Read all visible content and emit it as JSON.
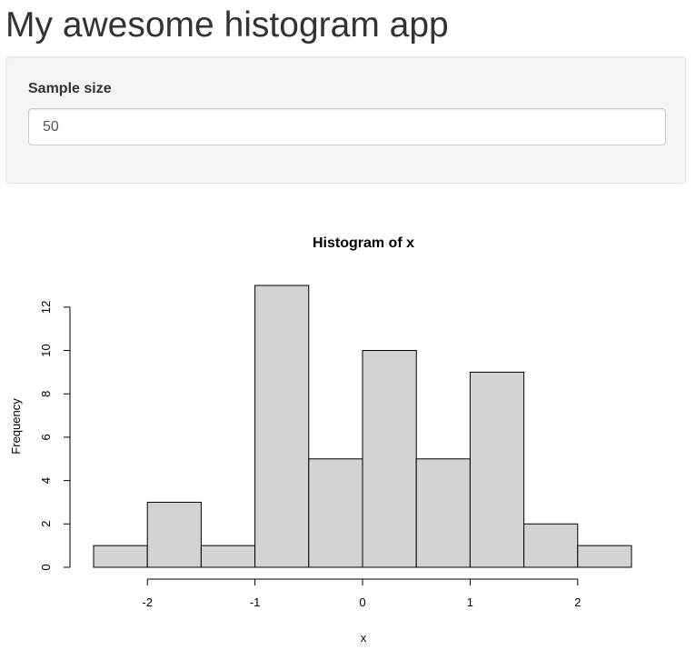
{
  "app": {
    "title": "My awesome histogram app"
  },
  "controls": {
    "sample_size_label": "Sample size",
    "sample_size_value": "50"
  },
  "chart_data": {
    "type": "bar",
    "title": "Histogram of x",
    "xlabel": "x",
    "ylabel": "Frequency",
    "bin_edges": [
      -2.5,
      -2.0,
      -1.5,
      -1.0,
      -0.5,
      0.0,
      0.5,
      1.0,
      1.5,
      2.0,
      2.5
    ],
    "values": [
      1,
      3,
      1,
      13,
      5,
      10,
      5,
      9,
      2,
      1
    ],
    "x_ticks": [
      -2,
      -1,
      0,
      1,
      2
    ],
    "x_tick_labels": [
      "-2",
      "-1",
      "0",
      "1",
      "2"
    ],
    "y_ticks": [
      0,
      2,
      4,
      6,
      8,
      10,
      12
    ],
    "y_tick_labels": [
      "0",
      "2",
      "4",
      "6",
      "8",
      "10",
      "12"
    ],
    "xlim": [
      -2.5,
      2.5
    ],
    "ylim": [
      0,
      13
    ],
    "bar_fill": "#d3d3d3",
    "bar_stroke": "#000000",
    "grid": false,
    "legend": "none"
  }
}
